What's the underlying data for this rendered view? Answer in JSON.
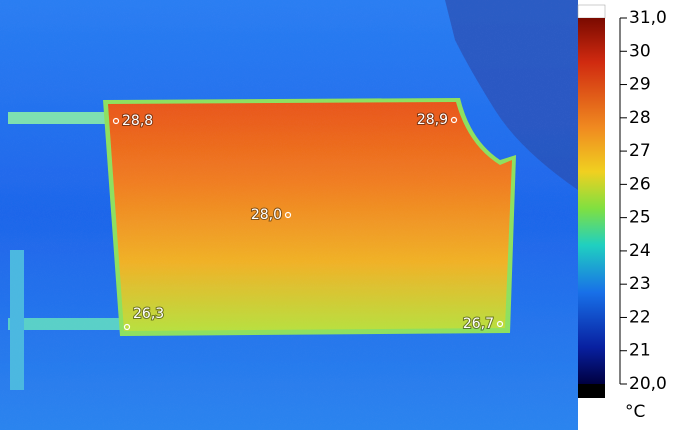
{
  "image": {
    "type": "thermal-photo"
  },
  "spots": [
    {
      "label": "28,8"
    },
    {
      "label": "28,9"
    },
    {
      "label": "28,0"
    },
    {
      "label": "26,3"
    },
    {
      "label": "26,7"
    }
  ],
  "scale": {
    "ticks": [
      {
        "value": 31,
        "label": "31,0"
      },
      30,
      29,
      28,
      27,
      26,
      25,
      24,
      23,
      22,
      21,
      {
        "value": 20,
        "label": "20,0"
      }
    ],
    "unit": "°C"
  }
}
